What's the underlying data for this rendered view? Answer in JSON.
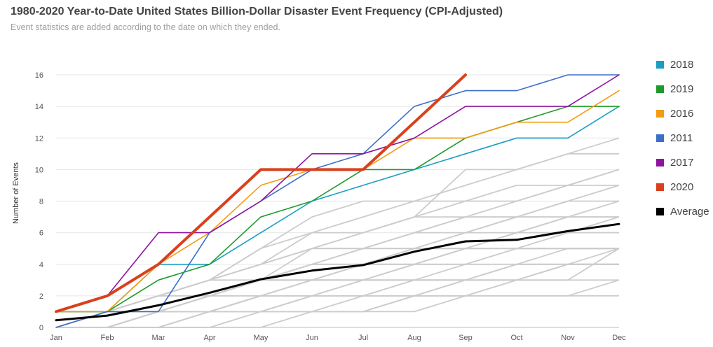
{
  "chart_data": {
    "type": "line",
    "title": "1980-2020 Year-to-Date United States Billion-Dollar Disaster Event Frequency (CPI-Adjusted)",
    "subtitle": "Event statistics are added according to the date on which they ended.",
    "xlabel": "",
    "ylabel": "Number of Events",
    "ylim": [
      0,
      16
    ],
    "yticks": [
      0,
      2,
      4,
      6,
      8,
      10,
      12,
      14,
      16
    ],
    "grid": true,
    "legend_position": "right",
    "categories": [
      "Jan",
      "Feb",
      "Mar",
      "Apr",
      "May",
      "Jun",
      "Jul",
      "Aug",
      "Sep",
      "Oct",
      "Nov",
      "Dec"
    ],
    "series": [
      {
        "name": "2018",
        "color": "#1a9ec1",
        "values": [
          1,
          1,
          4,
          4,
          6,
          8,
          9,
          10,
          11,
          12,
          12,
          14
        ]
      },
      {
        "name": "2019",
        "color": "#1e9a2b",
        "values": [
          1,
          1,
          3,
          4,
          7,
          8,
          10,
          10,
          12,
          13,
          14,
          14
        ]
      },
      {
        "name": "2016",
        "color": "#f39c12",
        "values": [
          1,
          1,
          4,
          6,
          9,
          10,
          10,
          12,
          12,
          13,
          13,
          15
        ]
      },
      {
        "name": "2011",
        "color": "#3b6fc9",
        "values": [
          0,
          1,
          1,
          6,
          8,
          10,
          11,
          14,
          15,
          15,
          16,
          16
        ]
      },
      {
        "name": "2017",
        "color": "#8e14a0",
        "values": [
          1,
          2,
          6,
          6,
          8,
          11,
          11,
          12,
          14,
          14,
          14,
          16
        ]
      },
      {
        "name": "2020",
        "color": "#d9401e",
        "values": [
          1,
          2,
          4,
          7,
          10,
          10,
          10,
          13,
          16,
          null,
          null,
          null
        ]
      },
      {
        "name": "Average",
        "color": "#000000",
        "values": [
          0.45,
          0.75,
          1.4,
          2.2,
          3.05,
          3.6,
          3.95,
          4.8,
          5.45,
          5.55,
          6.1,
          6.55
        ]
      }
    ],
    "background_series": [
      [
        0,
        1,
        1,
        2,
        2,
        2,
        2,
        2,
        2,
        2,
        2,
        2
      ],
      [
        0,
        0,
        1,
        1,
        2,
        2,
        3,
        3,
        3,
        4,
        5,
        5
      ],
      [
        0,
        1,
        1,
        2,
        3,
        3,
        4,
        5,
        5,
        5,
        5,
        5
      ],
      [
        0,
        0,
        0,
        1,
        1,
        1,
        2,
        2,
        2,
        2,
        2,
        3
      ],
      [
        0,
        0,
        1,
        1,
        2,
        3,
        3,
        4,
        5,
        6,
        7,
        7
      ],
      [
        1,
        1,
        2,
        2,
        3,
        4,
        5,
        5,
        6,
        7,
        8,
        8
      ],
      [
        0,
        1,
        2,
        3,
        4,
        5,
        5,
        6,
        7,
        8,
        9,
        10
      ],
      [
        0,
        0,
        0,
        0,
        1,
        1,
        1,
        1,
        2,
        3,
        3,
        5
      ],
      [
        0,
        1,
        2,
        3,
        5,
        7,
        8,
        8,
        9,
        10,
        11,
        12
      ],
      [
        1,
        1,
        1,
        2,
        3,
        4,
        4,
        4,
        4,
        5,
        5,
        5
      ],
      [
        0,
        1,
        2,
        3,
        4,
        6,
        6,
        7,
        8,
        9,
        9,
        9
      ],
      [
        0,
        0,
        1,
        2,
        2,
        3,
        3,
        4,
        5,
        5,
        6,
        7
      ],
      [
        0,
        1,
        1,
        2,
        3,
        3,
        4,
        4,
        5,
        6,
        6,
        6
      ],
      [
        0,
        0,
        0,
        1,
        1,
        2,
        2,
        3,
        3,
        4,
        4,
        5
      ],
      [
        0,
        1,
        2,
        3,
        4,
        5,
        6,
        7,
        7,
        7,
        8,
        9
      ],
      [
        1,
        1,
        1,
        1,
        2,
        2,
        2,
        3,
        3,
        3,
        3,
        3
      ],
      [
        0,
        1,
        2,
        2,
        3,
        4,
        5,
        6,
        7,
        7,
        7,
        8
      ],
      [
        0,
        0,
        1,
        1,
        1,
        2,
        2,
        2,
        3,
        4,
        4,
        4
      ],
      [
        0,
        1,
        2,
        3,
        5,
        6,
        7,
        8,
        8,
        8,
        9,
        10
      ],
      [
        0,
        0,
        0,
        0,
        0,
        1,
        1,
        2,
        2,
        3,
        4,
        4
      ],
      [
        0,
        1,
        1,
        2,
        3,
        5,
        6,
        7,
        10,
        10,
        11,
        11
      ],
      [
        1,
        1,
        2,
        3,
        3,
        4,
        5,
        5,
        6,
        6,
        7,
        7
      ],
      [
        0,
        0,
        1,
        2,
        3,
        4,
        4,
        5,
        5,
        6,
        6,
        6
      ],
      [
        0,
        1,
        1,
        1,
        2,
        3,
        3,
        3,
        4,
        5,
        5,
        5
      ],
      [
        0,
        0,
        0,
        1,
        2,
        3,
        3,
        4,
        4,
        4,
        4,
        4
      ],
      [
        0,
        1,
        2,
        3,
        4,
        5,
        5,
        6,
        6,
        7,
        7,
        7
      ],
      [
        0,
        0,
        1,
        1,
        2,
        3,
        4,
        4,
        5,
        5,
        5,
        5
      ],
      [
        0,
        1,
        1,
        2,
        3,
        3,
        4,
        5,
        5,
        6,
        7,
        7
      ],
      [
        0,
        0,
        0,
        1,
        1,
        1,
        1,
        2,
        3,
        3,
        4,
        4
      ],
      [
        1,
        1,
        1,
        1,
        2,
        2,
        3,
        3,
        3,
        3,
        4,
        4
      ]
    ],
    "background_color": "#cccccc"
  }
}
